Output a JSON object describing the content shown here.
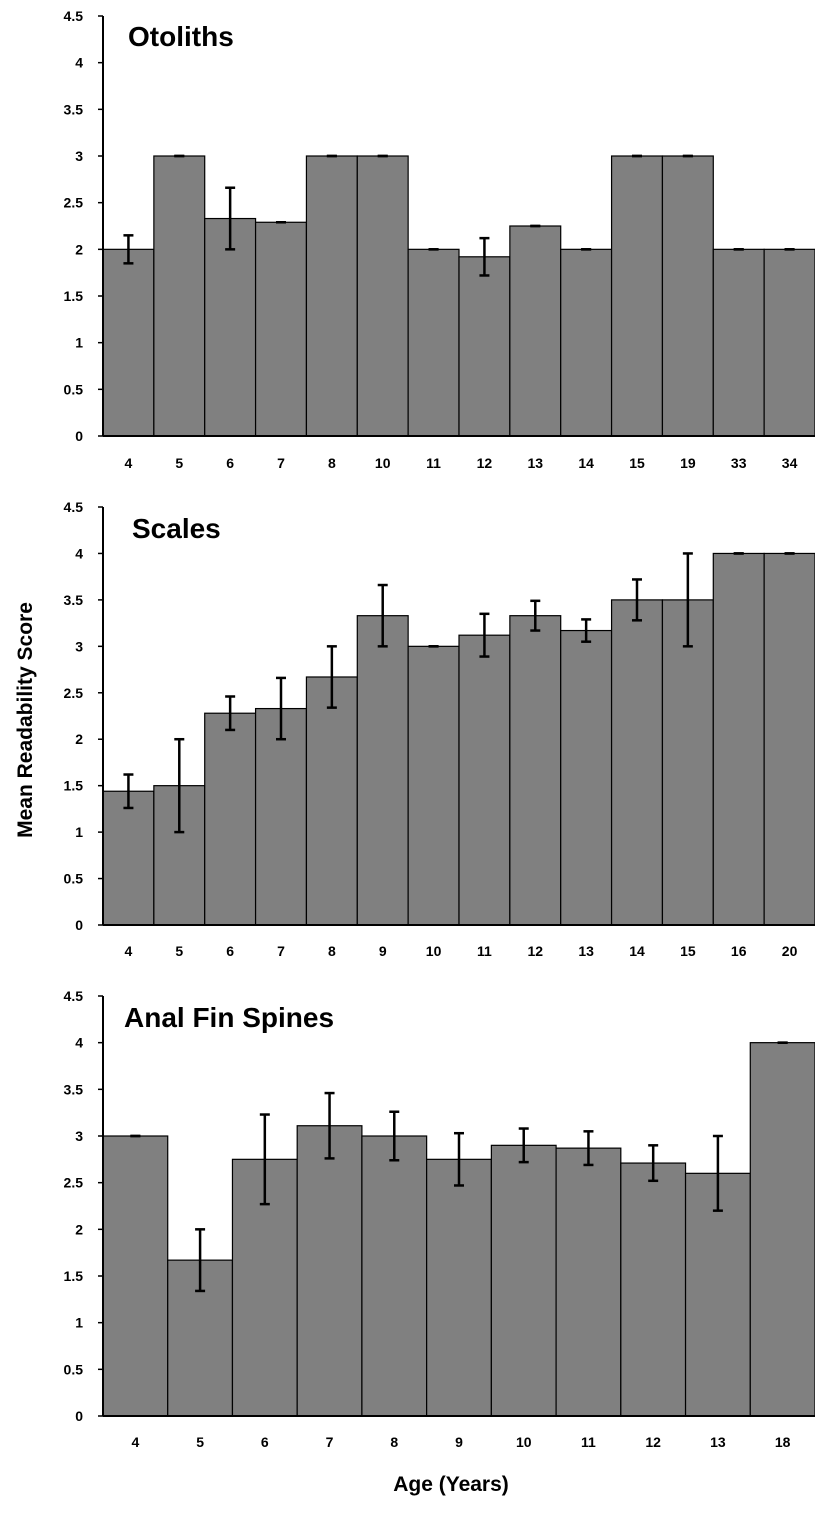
{
  "figure": {
    "ylabel": "Mean Readability Score",
    "xlabel": "Age (Years)"
  },
  "chart_data": [
    {
      "type": "bar",
      "title": "Otoliths",
      "ylim": [
        0,
        4.5
      ],
      "yticks": [
        "0",
        "0.5",
        "1",
        "1.5",
        "2",
        "2.5",
        "3",
        "3.5",
        "4",
        "4.5"
      ],
      "categories": [
        "4",
        "5",
        "6",
        "7",
        "8",
        "10",
        "11",
        "12",
        "13",
        "14",
        "15",
        "19",
        "33",
        "34"
      ],
      "values": [
        2.0,
        3.0,
        2.33,
        2.29,
        3.0,
        3.0,
        2.0,
        1.92,
        2.25,
        2.0,
        3.0,
        3.0,
        2.0,
        2.0
      ],
      "errors": [
        0.15,
        0.0,
        0.33,
        0.0,
        0.0,
        0.0,
        0.0,
        0.2,
        0.0,
        0.0,
        0.0,
        0.0,
        0.0,
        0.0
      ],
      "bar_color": "#808080",
      "grid": false
    },
    {
      "type": "bar",
      "title": "Scales",
      "ylim": [
        0,
        4.5
      ],
      "yticks": [
        "0",
        "0.5",
        "1",
        "1.5",
        "2",
        "2.5",
        "3",
        "3.5",
        "4",
        "4.5"
      ],
      "categories": [
        "4",
        "5",
        "6",
        "7",
        "8",
        "9",
        "10",
        "11",
        "12",
        "13",
        "14",
        "15",
        "16",
        "20"
      ],
      "values": [
        1.44,
        1.5,
        2.28,
        2.33,
        2.67,
        3.33,
        3.0,
        3.12,
        3.33,
        3.17,
        3.5,
        3.5,
        4.0,
        4.0
      ],
      "errors": [
        0.18,
        0.5,
        0.18,
        0.33,
        0.33,
        0.33,
        0.0,
        0.23,
        0.16,
        0.12,
        0.22,
        0.5,
        0.0,
        0.0
      ],
      "bar_color": "#808080",
      "grid": false
    },
    {
      "type": "bar",
      "title": "Anal Fin Spines",
      "ylim": [
        0,
        4.5
      ],
      "yticks": [
        "0",
        "0.5",
        "1",
        "1.5",
        "2",
        "2.5",
        "3",
        "3.5",
        "4",
        "4.5"
      ],
      "categories": [
        "4",
        "5",
        "6",
        "7",
        "8",
        "9",
        "10",
        "11",
        "12",
        "13",
        "18"
      ],
      "values": [
        3.0,
        1.67,
        2.75,
        3.11,
        3.0,
        2.75,
        2.9,
        2.87,
        2.71,
        2.6,
        4.0
      ],
      "errors": [
        0.0,
        0.33,
        0.48,
        0.35,
        0.26,
        0.28,
        0.18,
        0.18,
        0.19,
        0.4,
        0.0
      ],
      "bar_color": "#808080",
      "grid": false
    }
  ]
}
